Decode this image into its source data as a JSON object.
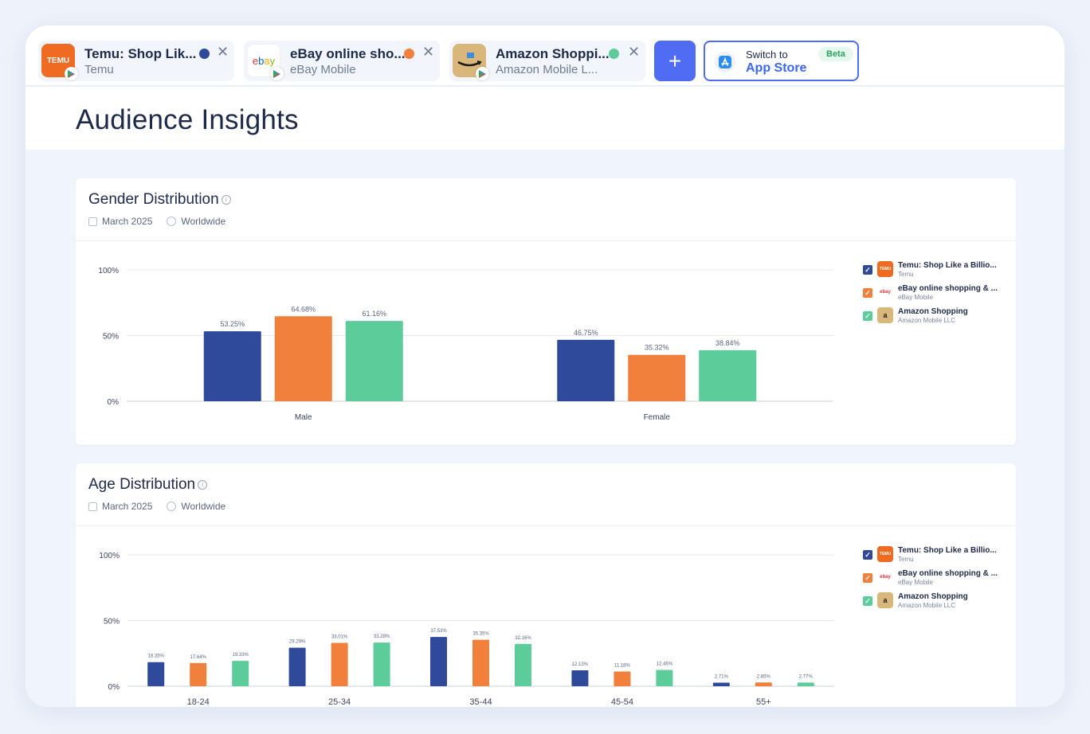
{
  "tabs": [
    {
      "title": "Temu: Shop Lik...",
      "subtitle": "Temu",
      "icon_text": "TEMU",
      "icon_color": "#f06b22",
      "dot_color": "#2f4a9a"
    },
    {
      "title": "eBay online sho...",
      "subtitle": "eBay Mobile",
      "icon_text": "ebay",
      "icon_color": "#ffffff",
      "dot_color": "#f0803c"
    },
    {
      "title": "Amazon Shoppi...",
      "subtitle": "Amazon Mobile L...",
      "icon_text": "amazon",
      "icon_color": "#d9b77a",
      "dot_color": "#5ccc9b"
    }
  ],
  "add_button": {
    "label": "+"
  },
  "switch": {
    "small": "Switch to",
    "big": "App Store",
    "badge": "Beta"
  },
  "page_title": "Audience Insights",
  "legend": [
    {
      "title": "Temu: Shop Like a Billio...",
      "subtitle": "Temu",
      "color": "#2f4a9a",
      "icon_text": "TEMU",
      "icon_color": "#f06b22"
    },
    {
      "title": "eBay online shopping & ...",
      "subtitle": "eBay Mobile",
      "color": "#f0803c",
      "icon_text": "ebay",
      "icon_color": "#ffffff"
    },
    {
      "title": "Amazon Shopping",
      "subtitle": "Amazon Mobile LLC",
      "color": "#5ccc9b",
      "icon_text": "a",
      "icon_color": "#d9b77a"
    }
  ],
  "gender_card": {
    "title": "Gender Distribution",
    "date": "March 2025",
    "region": "Worldwide"
  },
  "age_card": {
    "title": "Age Distribution",
    "date": "March 2025",
    "region": "Worldwide"
  },
  "chart_data": [
    {
      "type": "bar",
      "title": "Gender Distribution",
      "categories": [
        "Male",
        "Female"
      ],
      "ylim": [
        0,
        100
      ],
      "yticks": [
        "0%",
        "50%",
        "100%"
      ],
      "series": [
        {
          "name": "Temu: Shop Like a Billio...",
          "color": "#2f4a9a",
          "values": [
            53.25,
            46.75
          ],
          "labels": [
            "53.25%",
            "46.75%"
          ]
        },
        {
          "name": "eBay online shopping & ...",
          "color": "#f0803c",
          "values": [
            64.68,
            35.32
          ],
          "labels": [
            "64.68%",
            "35.32%"
          ]
        },
        {
          "name": "Amazon Shopping",
          "color": "#5ccc9b",
          "values": [
            61.16,
            38.84
          ],
          "labels": [
            "61.16%",
            "38.84%"
          ]
        }
      ]
    },
    {
      "type": "bar",
      "title": "Age Distribution",
      "categories": [
        "18-24",
        "25-34",
        "35-44",
        "45-54",
        "55+"
      ],
      "ylim": [
        0,
        100
      ],
      "yticks": [
        "0%",
        "50%",
        "100%"
      ],
      "series": [
        {
          "name": "Temu: Shop Like a Billio...",
          "color": "#2f4a9a",
          "values": [
            18.35,
            29.29,
            37.53,
            12.13,
            2.71
          ],
          "labels": [
            "18.35%",
            "29.29%",
            "37.53%",
            "12.13%",
            "2.71%"
          ]
        },
        {
          "name": "eBay online shopping & ...",
          "color": "#f0803c",
          "values": [
            17.64,
            33.01,
            35.35,
            11.18,
            2.85
          ],
          "labels": [
            "17.64%",
            "33.01%",
            "35.35%",
            "11.18%",
            "2.85%"
          ]
        },
        {
          "name": "Amazon Shopping",
          "color": "#5ccc9b",
          "values": [
            19.33,
            33.28,
            32.16,
            12.46,
            2.77
          ],
          "labels": [
            "19.33%",
            "33.28%",
            "32.16%",
            "12.46%",
            "2.77%"
          ]
        }
      ]
    }
  ]
}
